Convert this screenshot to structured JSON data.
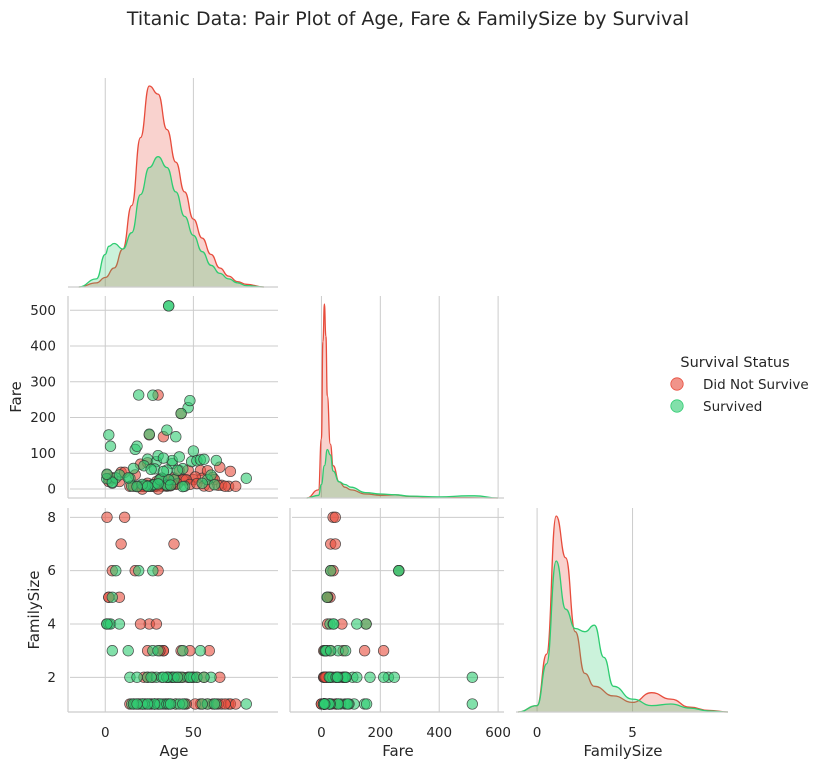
{
  "figure": {
    "title": "Titanic Data: Pair Plot of Age, Fare & FamilySize by Survival"
  },
  "legend": {
    "title": "Survival Status",
    "placement": "right",
    "items": [
      "Did Not Survive",
      "Survived"
    ]
  },
  "colors": {
    "did_not_survive": "#e74c3c",
    "survived": "#2ecc71",
    "marker_edge": "#333333",
    "grid": "#cccccc",
    "spine": "#cccccc"
  },
  "chart_data": {
    "type": "pairplot",
    "title": "Titanic Data: Pair Plot of Age, Fare & FamilySize by Survival",
    "variables": [
      {
        "name": "Age",
        "lim": [
          -20,
          98
        ],
        "ticks": [
          0,
          50
        ]
      },
      {
        "name": "Fare",
        "lim": [
          -25,
          540
        ],
        "ticks": [
          0,
          100,
          200,
          300,
          400,
          500
        ]
      },
      {
        "name": "FamilySize",
        "lim": [
          0.7,
          8.35
        ],
        "ticks": [
          2,
          4,
          6,
          8
        ]
      }
    ],
    "x_axis_ticks": {
      "Age": [
        0,
        50
      ],
      "Fare": [
        0,
        200,
        400,
        600
      ],
      "FamilySize": [
        0,
        5
      ]
    },
    "x_axis_lims": {
      "Age": [
        -20,
        98
      ],
      "Fare": [
        -100,
        620
      ],
      "FamilySize": [
        -1,
        10
      ]
    },
    "layout": "corner (lower triangle only)",
    "grid": true,
    "hue": "Survived",
    "series": [
      {
        "name": "Did Not Survive",
        "color": "#e74c3c",
        "kde": {
          "Age": {
            "x": [
              -15,
              -5,
              0,
              5,
              10,
              15,
              20,
              25,
              30,
              35,
              40,
              45,
              50,
              55,
              60,
              65,
              70,
              75,
              80,
              90
            ],
            "density": [
              0,
              0.0015,
              0.0035,
              0.007,
              0.014,
              0.03,
              0.055,
              0.074,
              0.071,
              0.058,
              0.046,
              0.035,
              0.025,
              0.018,
              0.012,
              0.007,
              0.004,
              0.002,
              0.001,
              0
            ]
          },
          "Fare": {
            "x": [
              -50,
              -10,
              0,
              5,
              10,
              15,
              20,
              30,
              40,
              60,
              80,
              100,
              150,
              200,
              250,
              300,
              400,
              500,
              600
            ],
            "density": [
              0,
              0.003,
              0.022,
              0.058,
              0.072,
              0.06,
              0.038,
              0.02,
              0.012,
              0.006,
              0.004,
              0.003,
              0.0015,
              0.001,
              0.0012,
              0.0006,
              0.0002,
              0.0001,
              0
            ]
          },
          "FamilySize": {
            "x": [
              -1,
              0,
              0.5,
              1,
              1.5,
              2,
              2.5,
              3,
              4,
              5,
              6,
              7,
              8,
              9,
              10
            ],
            "density": [
              0,
              0.02,
              0.18,
              0.61,
              0.48,
              0.25,
              0.12,
              0.08,
              0.05,
              0.03,
              0.06,
              0.04,
              0.015,
              0.005,
              0
            ]
          }
        },
        "points": {
          "Age": [
            22,
            35,
            54,
            2,
            20,
            39,
            14,
            2,
            31,
            35,
            8,
            19,
            40,
            66,
            28,
            42,
            21,
            18,
            40,
            27,
            45,
            24,
            32,
            29,
            30,
            50,
            37,
            55,
            16,
            4,
            33,
            44,
            58,
            25,
            47,
            36,
            61,
            26,
            19,
            23,
            62,
            41,
            9,
            51,
            28,
            34,
            65,
            70,
            71,
            74,
            24,
            28,
            30,
            38,
            22,
            25,
            46,
            43,
            33,
            17,
            1,
            11,
            20,
            29,
            31,
            36,
            48,
            52,
            56,
            59,
            64,
            68,
            30,
            21,
            24,
            27
          ],
          "Fare": [
            7.25,
            8.05,
            51.9,
            21.1,
            8.05,
            31.3,
            7.85,
            29.1,
            18,
            26,
            21.1,
            8.05,
            27.7,
            10.5,
            7.9,
            52,
            7.75,
            7.9,
            13,
            7.9,
            26,
            7.85,
            8.05,
            7.75,
            13,
            26.5,
            9,
            30,
            8.05,
            31.4,
            15.5,
            26,
            51,
            7.9,
            52.6,
            26.3,
            32.3,
            7.9,
            7.2,
            8.7,
            26.6,
            15,
            46.9,
            34,
            7.9,
            9.5,
            61.2,
            7.8,
            49.5,
            7.8,
            73.5,
            9,
            263,
            14.5,
            8.05,
            151.6,
            25.9,
            211,
            146.5,
            39.7,
            39.7,
            46.9,
            69.5,
            21,
            27.9,
            10.5,
            13,
            15.2,
            8.7,
            7.6,
            10.5,
            7.8,
            0,
            0,
            16.1,
            12.5
          ],
          "FamilySize": [
            2,
            1,
            1,
            5,
            1,
            7,
            1,
            5,
            1,
            2,
            5,
            1,
            2,
            1,
            1,
            2,
            1,
            1,
            1,
            1,
            1,
            1,
            1,
            1,
            1,
            2,
            1,
            1,
            1,
            6,
            3,
            2,
            1,
            1,
            2,
            1,
            1,
            1,
            1,
            1,
            1,
            2,
            7,
            1,
            1,
            1,
            2,
            1,
            1,
            1,
            3,
            1,
            6,
            2,
            1,
            4,
            1,
            3,
            3,
            6,
            8,
            8,
            4,
            4,
            3,
            2,
            3,
            2,
            2,
            3,
            1,
            1,
            1,
            1,
            2,
            2
          ]
        }
      },
      {
        "name": "Survived",
        "color": "#2ecc71",
        "kde": {
          "Age": {
            "x": [
              -15,
              -5,
              0,
              2,
              5,
              10,
              15,
              20,
              25,
              30,
              35,
              40,
              45,
              50,
              55,
              60,
              65,
              70,
              75,
              80,
              90
            ],
            "density": [
              0,
              0.003,
              0.012,
              0.015,
              0.016,
              0.014,
              0.02,
              0.034,
              0.044,
              0.048,
              0.044,
              0.035,
              0.026,
              0.019,
              0.013,
              0.008,
              0.005,
              0.003,
              0.0015,
              0.0005,
              0
            ]
          },
          "Fare": {
            "x": [
              -50,
              -10,
              0,
              10,
              20,
              30,
              40,
              60,
              80,
              100,
              150,
              200,
              250,
              300,
              400,
              500,
              520,
              600
            ],
            "density": [
              0,
              0.001,
              0.005,
              0.012,
              0.018,
              0.016,
              0.01,
              0.006,
              0.005,
              0.004,
              0.002,
              0.0015,
              0.0012,
              0.0007,
              0.0004,
              0.0008,
              0.0008,
              0
            ]
          },
          "FamilySize": {
            "x": [
              -1,
              0,
              0.5,
              1,
              1.5,
              2,
              2.5,
              3,
              3.5,
              4,
              5,
              6,
              7,
              8,
              9,
              10
            ],
            "density": [
              0,
              0.02,
              0.15,
              0.47,
              0.32,
              0.26,
              0.25,
              0.27,
              0.17,
              0.08,
              0.04,
              0.02,
              0.025,
              0.012,
              0.003,
              0
            ]
          }
        },
        "points": {
          "Age": [
            38,
            26,
            35,
            27,
            14,
            4,
            58,
            55,
            34,
            15,
            28,
            38,
            24,
            19,
            29,
            49,
            63,
            0.8,
            23,
            47,
            36,
            32,
            40,
            25,
            44,
            50,
            17,
            30,
            6,
            2,
            22,
            33,
            18,
            3,
            43,
            48,
            52,
            60,
            21,
            45,
            31,
            36,
            4,
            16,
            42,
            54,
            39,
            27,
            28,
            56,
            62,
            80,
            24,
            35,
            35,
            36,
            30,
            41,
            33,
            26,
            8,
            1,
            13,
            18,
            44,
            37
          ],
          "Fare": [
            71.3,
            7.9,
            53.1,
            11.1,
            30.1,
            16.7,
            26.6,
            16,
            13,
            8.5,
            13,
            80,
            83.5,
            263,
            76.7,
            76.7,
            80,
            29,
            10.5,
            227.5,
            512.3,
            30.5,
            146.5,
            153.5,
            57,
            106.4,
            110.9,
            93.5,
            31.3,
            151.6,
            65,
            86.5,
            120,
            120,
            211.3,
            247.5,
            79.2,
            39,
            13,
            7.7,
            26,
            512.3,
            19.3,
            57.9,
            90,
            81.9,
            26.6,
            262.4,
            56.5,
            83.2,
            12.3,
            30,
            7.8,
            164.9,
            10.5,
            26,
            14.5,
            52.6,
            49.5,
            55,
            39.7,
            41.6,
            31.4,
            6.9,
            7,
            11.1
          ],
          "FamilySize": [
            2,
            1,
            2,
            3,
            2,
            3,
            1,
            1,
            1,
            1,
            1,
            2,
            2,
            6,
            2,
            2,
            1,
            4,
            1,
            2,
            1,
            2,
            1,
            1,
            3,
            2,
            1,
            1,
            6,
            4,
            1,
            1,
            2,
            4,
            2,
            2,
            2,
            2,
            1,
            1,
            1,
            2,
            5,
            1,
            1,
            3,
            2,
            6,
            1,
            2,
            1,
            1,
            1,
            2,
            1,
            1,
            3,
            2,
            2,
            2,
            4,
            4,
            3,
            1,
            1,
            1
          ]
        }
      }
    ]
  }
}
